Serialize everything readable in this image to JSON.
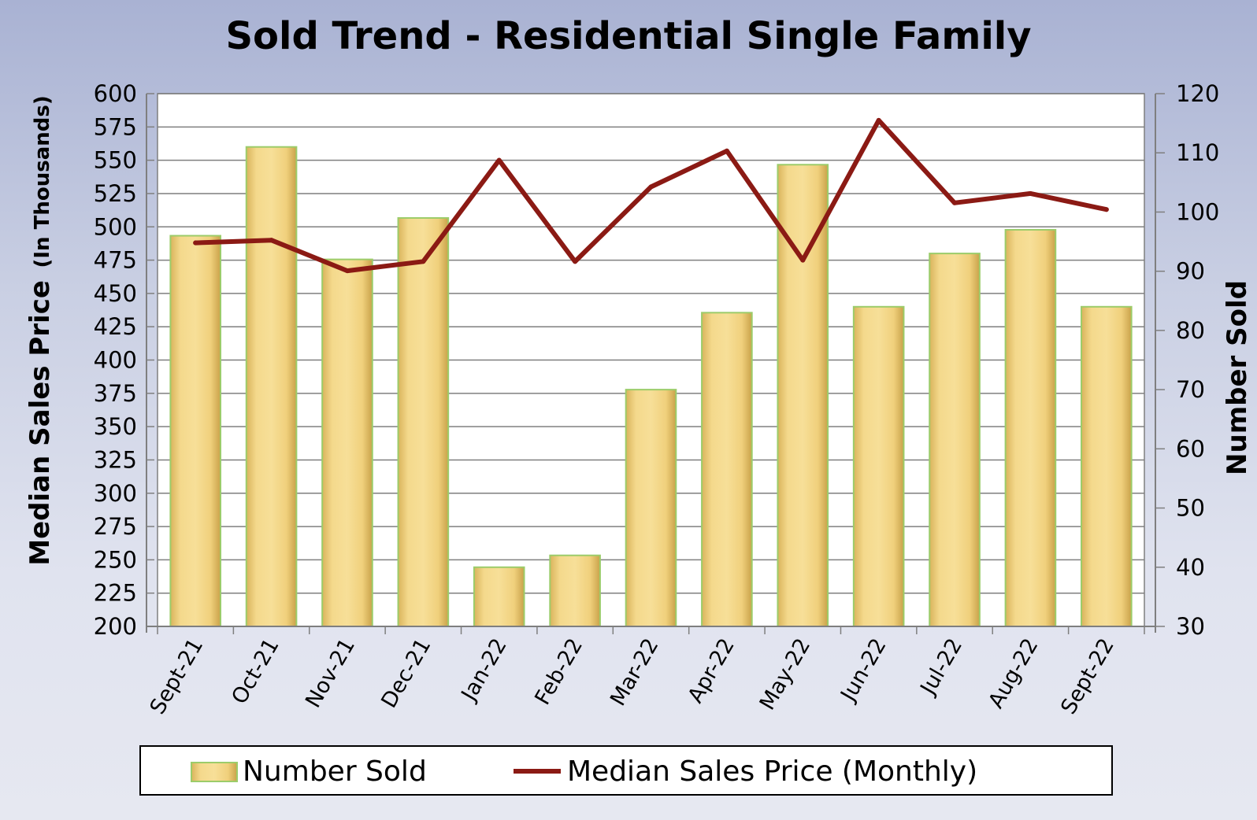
{
  "chart_data": {
    "type": "bar",
    "title": "Sold Trend - Residential Single Family",
    "categories": [
      "Sept-21",
      "Oct-21",
      "Nov-21",
      "Dec-21",
      "Jan-22",
      "Feb-22",
      "Mar-22",
      "Apr-22",
      "May-22",
      "Jun-22",
      "Jul-22",
      "Aug-22",
      "Sept-22"
    ],
    "series": [
      {
        "name": "Number Sold",
        "type": "bar",
        "axis": "right",
        "values": [
          96,
          111,
          92,
          99,
          40,
          42,
          70,
          83,
          108,
          84,
          93,
          97,
          84
        ]
      },
      {
        "name": "Median Sales Price (Monthly)",
        "type": "line",
        "axis": "left",
        "values": [
          488,
          490,
          467,
          474,
          550,
          474,
          530,
          557,
          475,
          580,
          518,
          525,
          513
        ]
      }
    ],
    "ylabel_left_main": "Median Sales Price",
    "ylabel_left_sub": "(In Thousands)",
    "ylabel_right": "Number Sold",
    "ylim_left": [
      200,
      600
    ],
    "ylim_right": [
      30,
      120
    ],
    "left_ticks": [
      200,
      225,
      250,
      275,
      300,
      325,
      350,
      375,
      400,
      425,
      450,
      475,
      500,
      525,
      550,
      575,
      600
    ],
    "right_ticks": [
      30,
      40,
      50,
      60,
      70,
      80,
      90,
      100,
      110,
      120
    ],
    "grid": true,
    "legend_position": "bottom",
    "colors": {
      "bar_fill": "#f2d27e",
      "bar_edge": "#9ccc6a",
      "line": "#8b1a14",
      "plot_bg": "#ffffff",
      "grid": "#7f7f7f"
    }
  }
}
